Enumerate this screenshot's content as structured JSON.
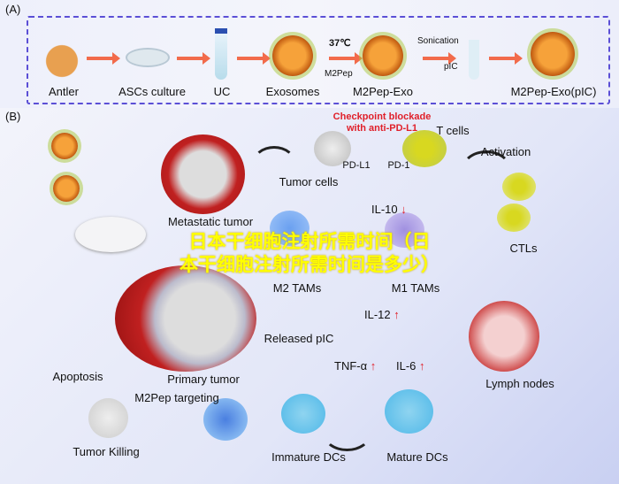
{
  "panel_a": {
    "tag": "(A)",
    "steps": [
      "Antler",
      "ASCs culture",
      "UC",
      "Exosomes",
      "M2Pep-Exo",
      "M2Pep-Exo(pIC)"
    ],
    "temperature": "37℃",
    "peptide": "M2Pep",
    "sonication": "Sonication",
    "pic": "pIC"
  },
  "panel_b": {
    "tag": "(B)",
    "checkpoint_line1": "Checkpoint blockade",
    "checkpoint_line2": "with anti-PD-L1",
    "t_cells": "T cells",
    "pd_l1": "PD-L1",
    "pd_1": "PD-1",
    "tumor_cells": "Tumor cells",
    "activation": "Activation",
    "il10": "IL-10",
    "ctls": "CTLs",
    "metastatic_tumor": "Metastatic tumor",
    "m2_tams": "M2 TAMs",
    "m1_tams": "M1 TAMs",
    "il12": "IL-12",
    "released_pic": "Released pIC",
    "tnf": "TNF-α",
    "il6": "IL-6",
    "lymph_nodes": "Lymph nodes",
    "apoptosis": "Apoptosis",
    "primary_tumor": "Primary tumor",
    "m2pep_targeting": "M2Pep targeting",
    "tumor_killing": "Tumor Killing",
    "immature_dcs": "Immature DCs",
    "mature_dcs": "Mature DCs",
    "up_arrow": "↑",
    "down_arrow": "↓"
  },
  "overlay": {
    "line1": "日本干细胞注射所需时间（日",
    "line2": "本干细胞注射所需时间是多少）"
  },
  "colors": {
    "border": "#5b4fd6",
    "arrow": "#f26b4b",
    "highlight_red": "#e0202a",
    "overlay": "#ffff00"
  }
}
